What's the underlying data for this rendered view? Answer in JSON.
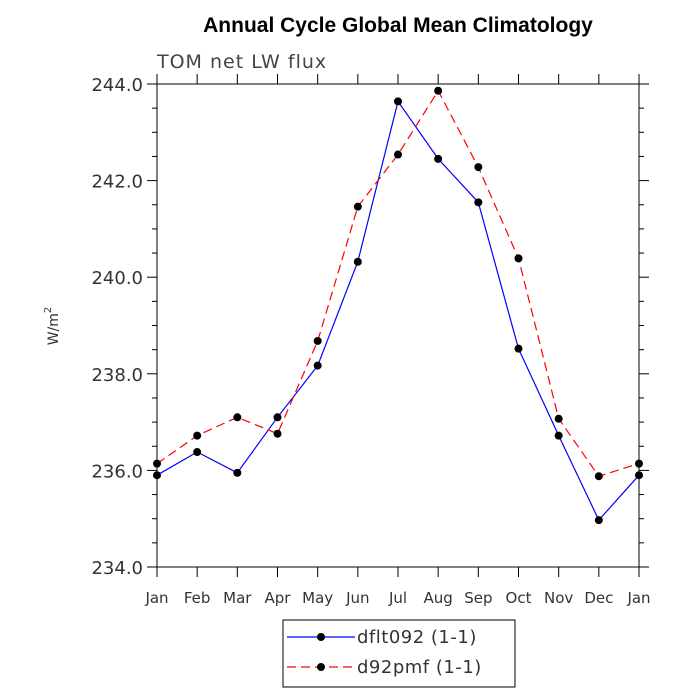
{
  "chart_data": {
    "type": "line",
    "title": "Annual Cycle Global Mean Climatology",
    "subtitle": "TOM net LW flux",
    "ylabel_base": "W/m",
    "ylabel_sup": "2",
    "xlabel": "",
    "categories": [
      "Jan",
      "Feb",
      "Mar",
      "Apr",
      "May",
      "Jun",
      "Jul",
      "Aug",
      "Sep",
      "Oct",
      "Nov",
      "Dec",
      "Jan"
    ],
    "ylim": [
      234.0,
      244.0
    ],
    "yticks": [
      "234.0",
      "236.0",
      "238.0",
      "240.0",
      "242.0",
      "244.0"
    ],
    "ytick_values": [
      234.0,
      236.0,
      238.0,
      240.0,
      242.0,
      244.0
    ],
    "series": [
      {
        "name": "dflt092 (1-1)",
        "color": "#0000ff",
        "dash": "solid",
        "values": [
          235.9,
          236.38,
          235.95,
          237.1,
          238.17,
          240.32,
          243.64,
          242.45,
          241.55,
          238.52,
          236.72,
          234.97,
          235.9
        ]
      },
      {
        "name": "d92pmf (1-1)",
        "color": "#ff0000",
        "dash": "dashed",
        "values": [
          236.14,
          236.72,
          237.1,
          236.76,
          238.68,
          241.46,
          242.54,
          243.86,
          242.28,
          240.39,
          237.07,
          235.88,
          236.14
        ]
      }
    ]
  }
}
